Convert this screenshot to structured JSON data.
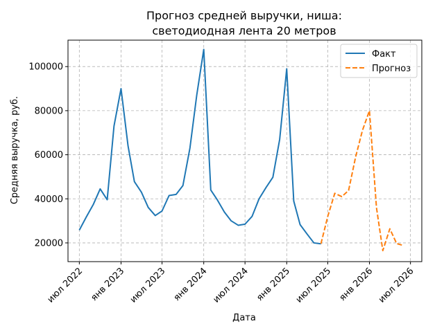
{
  "chart_data": {
    "type": "line",
    "title": [
      "Прогноз средней выручки, ниша:",
      "светодиодная лента 20 метров"
    ],
    "xlabel": "Дата",
    "ylabel": "Средняя выручка, руб.",
    "x_type": "date",
    "xlim": [
      "2022-05-12",
      "2026-08-20"
    ],
    "ylim": [
      11500,
      112000
    ],
    "x_ticks": [
      {
        "date": "2022-07-01",
        "label": "июл 2022"
      },
      {
        "date": "2023-01-01",
        "label": "янв 2023"
      },
      {
        "date": "2023-07-01",
        "label": "июл 2023"
      },
      {
        "date": "2024-01-01",
        "label": "янв 2024"
      },
      {
        "date": "2024-07-01",
        "label": "июл 2024"
      },
      {
        "date": "2025-01-01",
        "label": "янв 2025"
      },
      {
        "date": "2025-07-01",
        "label": "июл 2025"
      },
      {
        "date": "2026-01-01",
        "label": "янв 2026"
      },
      {
        "date": "2026-07-01",
        "label": "июл 2026"
      }
    ],
    "y_ticks": [
      {
        "value": 20000,
        "label": "20000"
      },
      {
        "value": 40000,
        "label": "40000"
      },
      {
        "value": 60000,
        "label": "60000"
      },
      {
        "value": 80000,
        "label": "80000"
      },
      {
        "value": 100000,
        "label": "100000"
      }
    ],
    "grid": true,
    "legend_position": "top-right",
    "series": [
      {
        "name": "Факт",
        "color": "#1f77b4",
        "style": "solid",
        "points": [
          {
            "x": "2022-07-01",
            "y": 25800
          },
          {
            "x": "2022-08-01",
            "y": 31800
          },
          {
            "x": "2022-09-01",
            "y": 37500
          },
          {
            "x": "2022-10-01",
            "y": 44500
          },
          {
            "x": "2022-11-01",
            "y": 39600
          },
          {
            "x": "2022-12-01",
            "y": 73000
          },
          {
            "x": "2023-01-01",
            "y": 90000
          },
          {
            "x": "2023-02-01",
            "y": 64000
          },
          {
            "x": "2023-03-01",
            "y": 47800
          },
          {
            "x": "2023-04-01",
            "y": 43000
          },
          {
            "x": "2023-05-01",
            "y": 36100
          },
          {
            "x": "2023-06-01",
            "y": 32400
          },
          {
            "x": "2023-07-01",
            "y": 34500
          },
          {
            "x": "2023-08-01",
            "y": 41500
          },
          {
            "x": "2023-09-01",
            "y": 42000
          },
          {
            "x": "2023-10-01",
            "y": 46000
          },
          {
            "x": "2023-11-01",
            "y": 63000
          },
          {
            "x": "2023-12-01",
            "y": 87000
          },
          {
            "x": "2024-01-01",
            "y": 107800
          },
          {
            "x": "2024-02-01",
            "y": 44000
          },
          {
            "x": "2024-03-01",
            "y": 39500
          },
          {
            "x": "2024-04-01",
            "y": 34000
          },
          {
            "x": "2024-05-01",
            "y": 30000
          },
          {
            "x": "2024-06-01",
            "y": 28000
          },
          {
            "x": "2024-07-01",
            "y": 28500
          },
          {
            "x": "2024-08-01",
            "y": 32000
          },
          {
            "x": "2024-09-01",
            "y": 40000
          },
          {
            "x": "2024-10-01",
            "y": 45000
          },
          {
            "x": "2024-11-01",
            "y": 49800
          },
          {
            "x": "2024-12-01",
            "y": 67000
          },
          {
            "x": "2025-01-01",
            "y": 99000
          },
          {
            "x": "2025-02-01",
            "y": 39000
          },
          {
            "x": "2025-03-01",
            "y": 28300
          },
          {
            "x": "2025-04-01",
            "y": 24000
          },
          {
            "x": "2025-05-01",
            "y": 20000
          },
          {
            "x": "2025-06-01",
            "y": 19600
          }
        ]
      },
      {
        "name": "Прогноз",
        "color": "#ff7f0e",
        "style": "dashed",
        "points": [
          {
            "x": "2025-06-01",
            "y": 19600
          },
          {
            "x": "2025-07-01",
            "y": 32000
          },
          {
            "x": "2025-08-01",
            "y": 42500
          },
          {
            "x": "2025-09-01",
            "y": 41000
          },
          {
            "x": "2025-10-01",
            "y": 43800
          },
          {
            "x": "2025-11-01",
            "y": 59000
          },
          {
            "x": "2025-12-01",
            "y": 71000
          },
          {
            "x": "2026-01-01",
            "y": 80000
          },
          {
            "x": "2026-02-01",
            "y": 36000
          },
          {
            "x": "2026-03-01",
            "y": 16500
          },
          {
            "x": "2026-04-01",
            "y": 26400
          },
          {
            "x": "2026-05-01",
            "y": 19700
          },
          {
            "x": "2026-06-01",
            "y": 18800
          }
        ]
      }
    ]
  }
}
